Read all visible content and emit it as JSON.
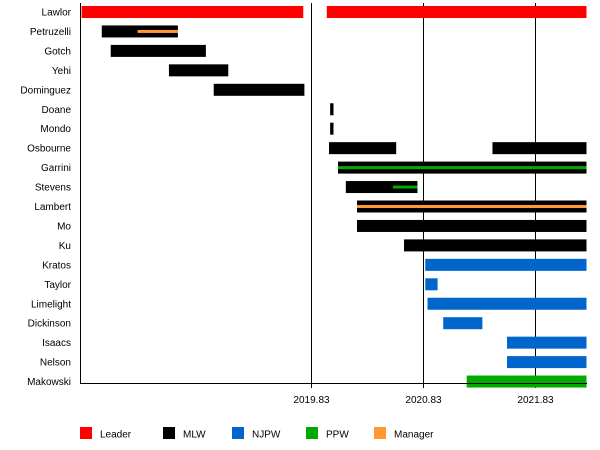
{
  "chart_data": {
    "type": "timeline",
    "title": "",
    "xlim": [
      2017.77,
      2022.29
    ],
    "xticks": [
      "2019.83",
      "2020.83",
      "2021.83"
    ],
    "xtick_values": [
      2019.83,
      2020.83,
      2021.83
    ],
    "legend_position": "bottom",
    "legend": [
      {
        "name": "Leader",
        "color": "#ff0000"
      },
      {
        "name": "MLW",
        "color": "#000000"
      },
      {
        "name": "NJPW",
        "color": "#0066cc"
      },
      {
        "name": "PPW",
        "color": "#00aa00"
      },
      {
        "name": "Manager",
        "color": "#ff9933"
      }
    ],
    "rows": [
      {
        "name": "Lawlor",
        "bars": [
          {
            "group": "Leader",
            "start": 2017.78,
            "end": 2019.76
          },
          {
            "group": "Leader",
            "start": 2019.97,
            "end": 2022.29
          }
        ]
      },
      {
        "name": "Petruzelli",
        "bars": [
          {
            "group": "MLW",
            "start": 2017.96,
            "end": 2018.64
          },
          {
            "group": "Manager",
            "start": 2018.28,
            "end": 2018.64,
            "thin": true
          }
        ]
      },
      {
        "name": "Gotch",
        "bars": [
          {
            "group": "MLW",
            "start": 2018.04,
            "end": 2018.89
          }
        ]
      },
      {
        "name": "Yehi",
        "bars": [
          {
            "group": "MLW",
            "start": 2018.56,
            "end": 2019.09
          }
        ]
      },
      {
        "name": "Dominguez",
        "bars": [
          {
            "group": "MLW",
            "start": 2018.96,
            "end": 2019.77
          }
        ]
      },
      {
        "name": "Doane",
        "bars": [
          {
            "group": "MLW",
            "start": 2020.0,
            "end": 2020.03
          }
        ]
      },
      {
        "name": "Mondo",
        "bars": [
          {
            "group": "MLW",
            "start": 2020.0,
            "end": 2020.03
          }
        ]
      },
      {
        "name": "Osbourne",
        "bars": [
          {
            "group": "MLW",
            "start": 2019.99,
            "end": 2020.59
          },
          {
            "group": "MLW",
            "start": 2021.45,
            "end": 2022.29
          }
        ]
      },
      {
        "name": "Garrini",
        "bars": [
          {
            "group": "MLW",
            "start": 2020.07,
            "end": 2022.29
          },
          {
            "group": "PPW",
            "start": 2020.07,
            "end": 2022.29,
            "thin": true
          }
        ]
      },
      {
        "name": "Stevens",
        "bars": [
          {
            "group": "MLW",
            "start": 2020.14,
            "end": 2020.78
          },
          {
            "group": "PPW",
            "start": 2020.56,
            "end": 2020.78,
            "thin": true
          }
        ]
      },
      {
        "name": "Lambert",
        "bars": [
          {
            "group": "MLW",
            "start": 2020.24,
            "end": 2022.29
          },
          {
            "group": "Manager",
            "start": 2020.24,
            "end": 2022.29,
            "thin": true
          }
        ]
      },
      {
        "name": "Mo",
        "bars": [
          {
            "group": "MLW",
            "start": 2020.24,
            "end": 2022.29
          }
        ]
      },
      {
        "name": "Ku",
        "bars": [
          {
            "group": "MLW",
            "start": 2020.66,
            "end": 2022.29
          }
        ]
      },
      {
        "name": "Kratos",
        "bars": [
          {
            "group": "NJPW",
            "start": 2020.85,
            "end": 2022.29
          }
        ]
      },
      {
        "name": "Taylor",
        "bars": [
          {
            "group": "NJPW",
            "start": 2020.85,
            "end": 2020.96
          }
        ]
      },
      {
        "name": "Limelight",
        "bars": [
          {
            "group": "NJPW",
            "start": 2020.87,
            "end": 2022.29
          }
        ]
      },
      {
        "name": "Dickinson",
        "bars": [
          {
            "group": "NJPW",
            "start": 2021.01,
            "end": 2021.36
          }
        ]
      },
      {
        "name": "Isaacs",
        "bars": [
          {
            "group": "NJPW",
            "start": 2021.58,
            "end": 2022.29
          }
        ]
      },
      {
        "name": "Nelson",
        "bars": [
          {
            "group": "NJPW",
            "start": 2021.58,
            "end": 2022.29
          }
        ]
      },
      {
        "name": "Makowski",
        "bars": [
          {
            "group": "PPW",
            "start": 2021.22,
            "end": 2022.29
          }
        ]
      }
    ]
  }
}
